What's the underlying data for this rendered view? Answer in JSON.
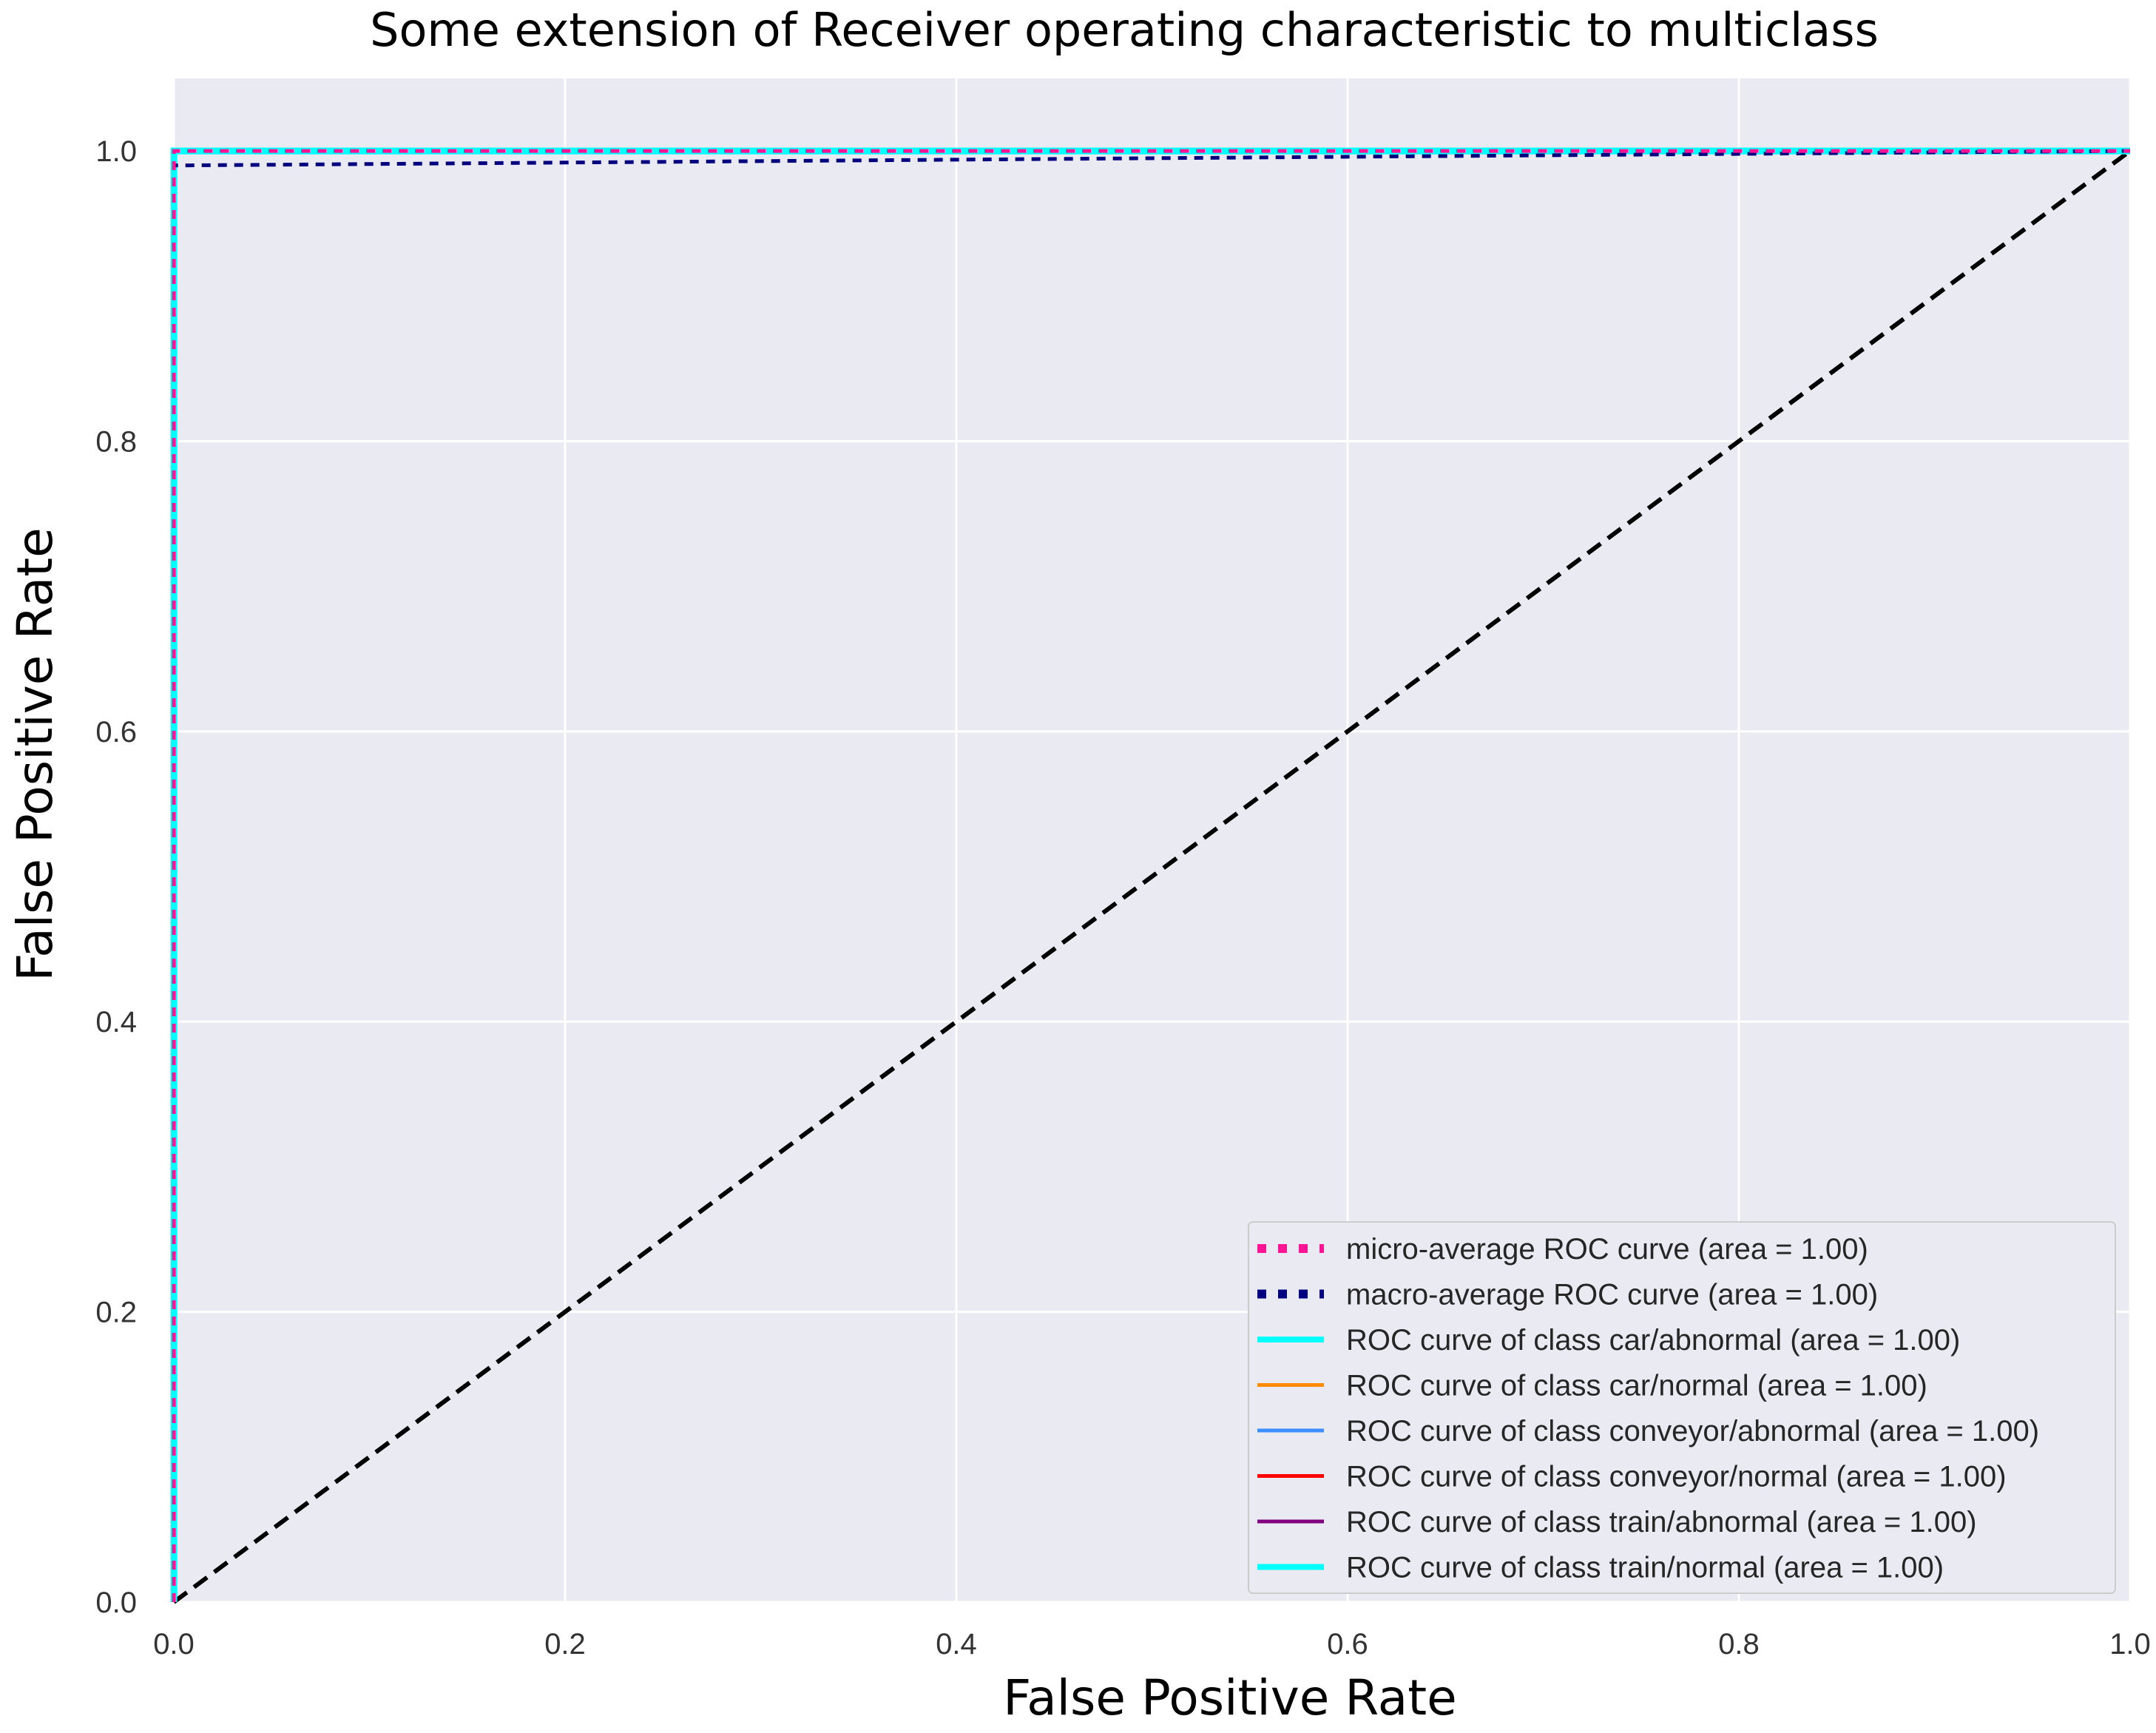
{
  "chart_data": {
    "type": "line",
    "title": "Some extension of Receiver operating characteristic to multiclass",
    "xlabel": "False Positive Rate",
    "ylabel": "False Positive Rate",
    "xlim": [
      0.0,
      1.0
    ],
    "ylim": [
      0.0,
      1.05
    ],
    "x_ticks": [
      "0.0",
      "0.2",
      "0.4",
      "0.6",
      "0.8",
      "1.0"
    ],
    "y_ticks": [
      "0.0",
      "0.2",
      "0.4",
      "0.6",
      "0.8",
      "1.0"
    ],
    "grid": true,
    "legend_position": "lower-right",
    "background_color": "#eaeaf2",
    "series": [
      {
        "name": "micro-average ROC curve (area = 1.00)",
        "color": "#ff1493",
        "style": "dotted",
        "x": [
          0.0,
          0.0,
          1.0
        ],
        "y": [
          0.0,
          1.0,
          1.0
        ]
      },
      {
        "name": "macro-average ROC curve (area = 1.00)",
        "color": "#000080",
        "style": "dotted",
        "x": [
          0.0,
          0.0,
          1.0
        ],
        "y": [
          0.0,
          0.99,
          1.0
        ]
      },
      {
        "name": "ROC curve of class car/abnormal (area = 1.00)",
        "color": "#00ffff",
        "style": "solid",
        "x": [
          0.0,
          0.0,
          1.0
        ],
        "y": [
          0.0,
          1.0,
          1.0
        ]
      },
      {
        "name": "ROC curve of class car/normal (area = 1.00)",
        "color": "#ff8c00",
        "style": "solid",
        "x": [
          0.0,
          0.0,
          1.0
        ],
        "y": [
          0.0,
          1.0,
          1.0
        ]
      },
      {
        "name": "ROC curve of class conveyor/abnormal (area = 1.00)",
        "color": "#3d8eff",
        "style": "solid",
        "x": [
          0.0,
          0.0,
          1.0
        ],
        "y": [
          0.0,
          1.0,
          1.0
        ]
      },
      {
        "name": "ROC curve of class conveyor/normal (area = 1.00)",
        "color": "#ff0000",
        "style": "solid",
        "x": [
          0.0,
          0.0,
          1.0
        ],
        "y": [
          0.0,
          1.0,
          1.0
        ]
      },
      {
        "name": "ROC curve of class train/abnormal (area = 1.00)",
        "color": "#800080",
        "style": "solid",
        "x": [
          0.0,
          0.0,
          0.0,
          1.0
        ],
        "y": [
          0.0,
          0.92,
          1.0,
          1.0
        ]
      },
      {
        "name": "ROC curve of class train/normal (area = 1.00)",
        "color": "#00ffff",
        "style": "solid",
        "x": [
          0.0,
          0.0,
          1.0
        ],
        "y": [
          0.0,
          1.0,
          1.0
        ]
      }
    ],
    "reference_line": {
      "x": [
        0.0,
        1.0
      ],
      "y": [
        0.0,
        1.0
      ],
      "color": "#000000",
      "style": "dashed"
    }
  }
}
